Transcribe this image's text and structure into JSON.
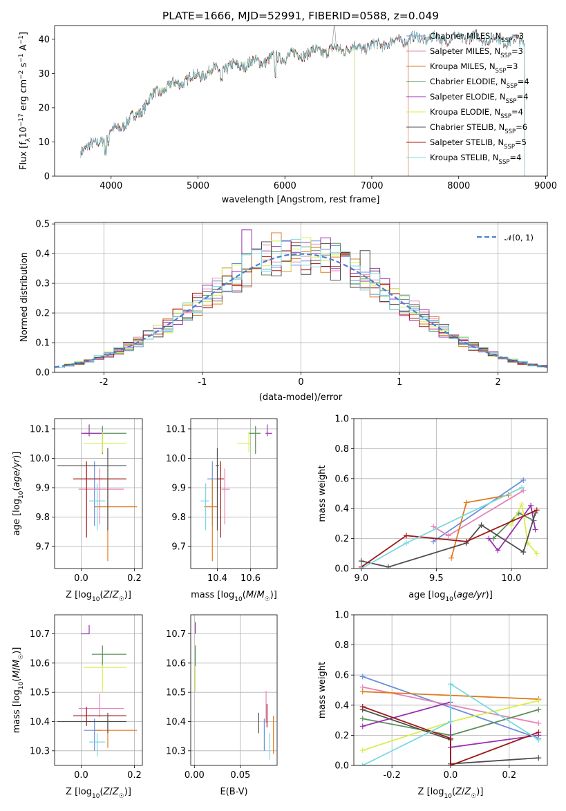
{
  "title": "PLATE=1666, MJD=52991, FIBERID=0588, z=0.049",
  "colors": {
    "Chabrier MILES": "#6a8fdb",
    "Salpeter MILES": "#e882b8",
    "Kroupa MILES": "#e07a1f",
    "Chabrier ELODIE": "#5a8f5a",
    "Salpeter ELODIE": "#9b30b0",
    "Kroupa ELODIE": "#d7ef4a",
    "Chabrier STELIB": "#4d4d4d",
    "Salpeter STELIB": "#a01818",
    "Kroupa STELIB": "#7ad8e0"
  },
  "chart_data": [
    {
      "id": "spectrum",
      "type": "line",
      "xlabel": "wavelength [Angstrom, rest frame]",
      "ylabel": "Flux [f_λ10^-17 erg cm^-2 s^-1 A^-1]",
      "xlim": [
        3350,
        9020
      ],
      "ylim": [
        0,
        44
      ],
      "xticks": [
        4000,
        5000,
        6000,
        7000,
        8000,
        9000
      ],
      "yticks": [
        0,
        10,
        20,
        30,
        40
      ],
      "legend_position": "upper right",
      "legend": [
        "Chabrier MILES, N_SSP=3",
        "Salpeter MILES, N_SSP=3",
        "Kroupa MILES, N_SSP=3",
        "Chabrier ELODIE, N_SSP=4",
        "Salpeter ELODIE, N_SSP=4",
        "Kroupa ELODIE, N_SSP=4",
        "Chabrier STELIB, N_SSP=6",
        "Salpeter STELIB, N_SSP=5",
        "Kroupa STELIB, N_SSP=4"
      ],
      "legend_parts": [
        [
          "Chabrier MILES, N",
          "SSP",
          "=3"
        ],
        [
          "Salpeter MILES, N",
          "SSP",
          "=3"
        ],
        [
          "Kroupa MILES, N",
          "SSP",
          "=3"
        ],
        [
          "Chabrier ELODIE, N",
          "SSP",
          "=4"
        ],
        [
          "Salpeter ELODIE, N",
          "SSP",
          "=4"
        ],
        [
          "Kroupa ELODIE, N",
          "SSP",
          "=4"
        ],
        [
          "Chabrier STELIB, N",
          "SSP",
          "=6"
        ],
        [
          "Salpeter STELIB, N",
          "SSP",
          "=5"
        ],
        [
          "Kroupa STELIB, N",
          "SSP",
          "=4"
        ]
      ],
      "continuum": [
        [
          3650,
          8
        ],
        [
          3800,
          9
        ],
        [
          3900,
          11
        ],
        [
          4000,
          13
        ],
        [
          4100,
          14.5
        ],
        [
          4200,
          16
        ],
        [
          4300,
          18
        ],
        [
          4400,
          21
        ],
        [
          4500,
          24
        ],
        [
          4600,
          25.5
        ],
        [
          4800,
          27.5
        ],
        [
          5000,
          29.5
        ],
        [
          5200,
          31
        ],
        [
          5400,
          32
        ],
        [
          5600,
          33
        ],
        [
          5800,
          34
        ],
        [
          6000,
          35
        ],
        [
          6200,
          35.8
        ],
        [
          6400,
          36.5
        ],
        [
          6600,
          37
        ],
        [
          6800,
          37.5
        ],
        [
          7000,
          38
        ],
        [
          7200,
          39
        ],
        [
          7400,
          40
        ],
        [
          7600,
          40.5
        ],
        [
          7800,
          40
        ],
        [
          8000,
          40.5
        ],
        [
          8200,
          40.5
        ],
        [
          8400,
          40
        ],
        [
          8600,
          39.5
        ],
        [
          8800,
          39
        ]
      ],
      "models_span": [
        {
          "model": "Chabrier MILES",
          "x0": 3650,
          "x1": 7420
        },
        {
          "model": "Salpeter MILES",
          "x0": 3650,
          "x1": 7420
        },
        {
          "model": "Kroupa MILES",
          "x0": 3650,
          "x1": 7420
        },
        {
          "model": "Chabrier ELODIE",
          "x0": 3900,
          "x1": 6800
        },
        {
          "model": "Salpeter ELODIE",
          "x0": 3900,
          "x1": 6800
        },
        {
          "model": "Kroupa ELODIE",
          "x0": 3900,
          "x1": 6800
        },
        {
          "model": "Chabrier STELIB",
          "x0": 3650,
          "x1": 8760
        },
        {
          "model": "Salpeter STELIB",
          "x0": 3650,
          "x1": 8760
        },
        {
          "model": "Kroupa STELIB",
          "x0": 3650,
          "x1": 8760
        }
      ]
    },
    {
      "id": "residuals",
      "type": "line",
      "xlabel": "(data-model)/error",
      "ylabel": "Normed distribution",
      "xlim": [
        -2.5,
        2.5
      ],
      "ylim": [
        0,
        0.505
      ],
      "xticks": [
        -2,
        -1,
        0,
        1,
        2
      ],
      "yticks": [
        0.0,
        0.1,
        0.2,
        0.3,
        0.4,
        0.5
      ],
      "legend": [
        "𝒩(0, 1)"
      ],
      "legend_position": "upper right",
      "grid": true,
      "bin_width": 0.1,
      "gaussian": {
        "mean": 0,
        "sigma": 1
      }
    },
    {
      "id": "age_vs_Z",
      "type": "scatter",
      "xlabel": "Z [log10(Z/Z☉)]",
      "ylabel": "age [log10(age/yr)]",
      "xlim": [
        -0.1,
        0.23
      ],
      "ylim": [
        9.625,
        10.135
      ],
      "xticks": [
        0.0,
        0.2
      ],
      "yticks": [
        9.7,
        9.8,
        9.9,
        10.0,
        10.1
      ],
      "points": [
        {
          "model": "Chabrier MILES",
          "x": 0.05,
          "y": 9.93,
          "xerr": [
            0.04,
            0.03
          ],
          "yerr": [
            0.16,
            0.06
          ]
        },
        {
          "model": "Salpeter MILES",
          "x": 0.07,
          "y": 9.895,
          "xerr": [
            0.08,
            0.09
          ],
          "yerr": [
            0.12,
            0.07
          ]
        },
        {
          "model": "Kroupa MILES",
          "x": 0.1,
          "y": 9.835,
          "xerr": [
            0.05,
            0.11
          ],
          "yerr": [
            0.185,
            0.095
          ]
        },
        {
          "model": "Chabrier ELODIE",
          "x": 0.08,
          "y": 10.085,
          "xerr": [
            0.07,
            0.09
          ],
          "yerr": [
            0.07,
            0.025
          ]
        },
        {
          "model": "Salpeter ELODIE",
          "x": 0.03,
          "y": 10.085,
          "xerr": [
            0.03,
            0.05
          ],
          "yerr": [
            0.01,
            0.03
          ]
        },
        {
          "model": "Kroupa ELODIE",
          "x": 0.08,
          "y": 10.05,
          "xerr": [
            0.07,
            0.09
          ],
          "yerr": [
            0.03,
            0.04
          ]
        },
        {
          "model": "Chabrier STELIB",
          "x": 0.1,
          "y": 9.975,
          "xerr": [
            0.19,
            0.07
          ],
          "yerr": [
            0.22,
            0.06
          ]
        },
        {
          "model": "Salpeter STELIB",
          "x": 0.02,
          "y": 9.93,
          "xerr": [
            0.05,
            0.15
          ],
          "yerr": [
            0.2,
            0.06
          ]
        },
        {
          "model": "Kroupa STELIB",
          "x": 0.06,
          "y": 9.855,
          "xerr": [
            0.03,
            0.03
          ],
          "yerr": [
            0.1,
            0.06
          ]
        }
      ]
    },
    {
      "id": "age_vs_mass",
      "type": "scatter",
      "xlabel": "mass [log10(M/M☉)]",
      "ylabel": "",
      "xlim": [
        10.24,
        10.76
      ],
      "ylim": [
        9.625,
        10.135
      ],
      "xticks": [
        10.4,
        10.6
      ],
      "yticks": [
        9.7,
        9.8,
        9.9,
        10.0,
        10.1
      ],
      "points": [
        {
          "model": "Chabrier MILES",
          "x": 10.37,
          "y": 9.93,
          "xerr": [
            0.03,
            0.04
          ],
          "yerr": [
            0.16,
            0.06
          ]
        },
        {
          "model": "Salpeter MILES",
          "x": 10.445,
          "y": 9.895,
          "xerr": [
            0.02,
            0.03
          ],
          "yerr": [
            0.12,
            0.07
          ]
        },
        {
          "model": "Kroupa MILES",
          "x": 10.37,
          "y": 9.835,
          "xerr": [
            0.05,
            0.03
          ],
          "yerr": [
            0.185,
            0.095
          ]
        },
        {
          "model": "Chabrier ELODIE",
          "x": 10.63,
          "y": 10.085,
          "xerr": [
            0.04,
            0.03
          ],
          "yerr": [
            0.07,
            0.025
          ]
        },
        {
          "model": "Salpeter ELODIE",
          "x": 10.7,
          "y": 10.085,
          "xerr": [
            0.01,
            0.03
          ],
          "yerr": [
            0.01,
            0.03
          ]
        },
        {
          "model": "Kroupa ELODIE",
          "x": 10.59,
          "y": 10.05,
          "xerr": [
            0.07,
            0.01
          ],
          "yerr": [
            0.03,
            0.04
          ]
        },
        {
          "model": "Chabrier STELIB",
          "x": 10.4,
          "y": 9.975,
          "xerr": [
            0.01,
            0.01
          ],
          "yerr": [
            0.22,
            0.06
          ]
        },
        {
          "model": "Salpeter STELIB",
          "x": 10.42,
          "y": 9.93,
          "xerr": [
            0.02,
            0.02
          ],
          "yerr": [
            0.2,
            0.06
          ]
        },
        {
          "model": "Kroupa STELIB",
          "x": 10.33,
          "y": 9.855,
          "xerr": [
            0.03,
            0.02
          ],
          "yerr": [
            0.1,
            0.06
          ]
        }
      ]
    },
    {
      "id": "weight_vs_age",
      "type": "line",
      "xlabel": "age [log10(age/yr)]",
      "ylabel": "mass weight",
      "xlim": [
        8.95,
        10.24
      ],
      "ylim": [
        0,
        1.0
      ],
      "xticks": [
        9.0,
        9.5,
        10.0
      ],
      "yticks": [
        0.0,
        0.2,
        0.4,
        0.6,
        0.8,
        1.0
      ],
      "series": [
        {
          "model": "Chabrier MILES",
          "x": [
            9.48,
            10.08
          ],
          "y": [
            0.18,
            0.59
          ]
        },
        {
          "model": "Salpeter MILES",
          "x": [
            9.48,
            9.58,
            10.08
          ],
          "y": [
            0.28,
            0.22,
            0.52
          ]
        },
        {
          "model": "Kroupa MILES",
          "x": [
            9.6,
            9.7,
            9.98
          ],
          "y": [
            0.07,
            0.44,
            0.49
          ]
        },
        {
          "model": "Chabrier ELODIE",
          "x": [
            9.88,
            10.05,
            10.15
          ],
          "y": [
            0.2,
            0.37,
            0.32
          ]
        },
        {
          "model": "Salpeter ELODIE",
          "x": [
            9.85,
            9.91,
            10.13,
            10.16
          ],
          "y": [
            0.2,
            0.12,
            0.42,
            0.26
          ]
        },
        {
          "model": "Kroupa ELODIE",
          "x": [
            10.0,
            10.07,
            10.11,
            10.17
          ],
          "y": [
            0.29,
            0.43,
            0.17,
            0.1
          ]
        },
        {
          "model": "Chabrier STELIB",
          "x": [
            9.0,
            9.18,
            9.7,
            9.8,
            10.08,
            10.16
          ],
          "y": [
            0.05,
            0.01,
            0.17,
            0.29,
            0.11,
            0.37
          ]
        },
        {
          "model": "Salpeter STELIB",
          "x": [
            9.0,
            9.3,
            9.7,
            10.17
          ],
          "y": [
            0.01,
            0.22,
            0.18,
            0.39
          ]
        },
        {
          "model": "Kroupa STELIB",
          "x": [
            9.0,
            9.3,
            10.07
          ],
          "y": [
            0.0,
            0.17,
            0.54
          ]
        }
      ]
    },
    {
      "id": "mass_vs_Z",
      "type": "scatter",
      "xlabel": "Z [log10(Z/Z☉)]",
      "ylabel": "mass [log10(M/M☉)]",
      "xlim": [
        -0.1,
        0.23
      ],
      "ylim": [
        10.25,
        10.765
      ],
      "xticks": [
        0.0,
        0.2
      ],
      "yticks": [
        10.3,
        10.4,
        10.5,
        10.6,
        10.7
      ],
      "points": [
        {
          "model": "Chabrier MILES",
          "x": 0.05,
          "y": 10.37,
          "xerr": [
            0.04,
            0.03
          ],
          "yerr": [
            0.07,
            0.04
          ]
        },
        {
          "model": "Salpeter MILES",
          "x": 0.07,
          "y": 10.445,
          "xerr": [
            0.08,
            0.09
          ],
          "yerr": [
            0.03,
            0.05
          ]
        },
        {
          "model": "Kroupa MILES",
          "x": 0.1,
          "y": 10.37,
          "xerr": [
            0.05,
            0.11
          ],
          "yerr": [
            0.06,
            0.03
          ]
        },
        {
          "model": "Chabrier ELODIE",
          "x": 0.08,
          "y": 10.63,
          "xerr": [
            0.04,
            0.09
          ],
          "yerr": [
            0.04,
            0.03
          ]
        },
        {
          "model": "Salpeter ELODIE",
          "x": 0.03,
          "y": 10.7,
          "xerr": [
            0.03,
            0.0
          ],
          "yerr": [
            0.0,
            0.03
          ]
        },
        {
          "model": "Kroupa ELODIE",
          "x": 0.08,
          "y": 10.585,
          "xerr": [
            0.07,
            0.09
          ],
          "yerr": [
            0.085,
            0.01
          ]
        },
        {
          "model": "Chabrier STELIB",
          "x": 0.1,
          "y": 10.4,
          "xerr": [
            0.19,
            0.07
          ],
          "yerr": [
            0.04,
            0.03
          ]
        },
        {
          "model": "Salpeter STELIB",
          "x": 0.02,
          "y": 10.42,
          "xerr": [
            0.05,
            0.15
          ],
          "yerr": [
            0.035,
            0.03
          ]
        },
        {
          "model": "Kroupa STELIB",
          "x": 0.06,
          "y": 10.33,
          "xerr": [
            0.03,
            0.03
          ],
          "yerr": [
            0.05,
            0.03
          ]
        }
      ]
    },
    {
      "id": "mass_vs_EBV",
      "type": "scatter",
      "xlabel": "E(B-V)",
      "ylabel": "",
      "xlim": [
        -0.004,
        0.09
      ],
      "ylim": [
        10.25,
        10.765
      ],
      "xticks": [
        0.0,
        0.05
      ],
      "yticks": [
        10.3,
        10.4,
        10.5,
        10.6,
        10.7
      ],
      "points": [
        {
          "model": "Chabrier MILES",
          "x": 0.076,
          "y": 10.37,
          "yerr": [
            0.07,
            0.04
          ]
        },
        {
          "model": "Salpeter MILES",
          "x": 0.078,
          "y": 10.445,
          "yerr": [
            0.05,
            0.06
          ]
        },
        {
          "model": "Kroupa MILES",
          "x": 0.086,
          "y": 10.37,
          "yerr": [
            0.08,
            0.05
          ]
        },
        {
          "model": "Chabrier ELODIE",
          "x": 0.001,
          "y": 10.63,
          "yerr": [
            0.04,
            0.03
          ]
        },
        {
          "model": "Salpeter ELODIE",
          "x": 0.001,
          "y": 10.72,
          "yerr": [
            0.02,
            0.02
          ]
        },
        {
          "model": "Kroupa ELODIE",
          "x": 0.001,
          "y": 10.54,
          "yerr": [
            0.04,
            0.05
          ]
        },
        {
          "model": "Chabrier STELIB",
          "x": 0.07,
          "y": 10.39,
          "yerr": [
            0.03,
            0.04
          ]
        },
        {
          "model": "Salpeter STELIB",
          "x": 0.079,
          "y": 10.42,
          "yerr": [
            0.04,
            0.04
          ]
        },
        {
          "model": "Kroupa STELIB",
          "x": 0.082,
          "y": 10.31,
          "yerr": [
            0.04,
            0.05
          ]
        }
      ]
    },
    {
      "id": "weight_vs_Z",
      "type": "line",
      "xlabel": "Z [log10(Z/Z☉)]",
      "ylabel": "mass weight",
      "xlim": [
        -0.33,
        0.33
      ],
      "ylim": [
        0,
        1.0
      ],
      "xticks": [
        -0.2,
        0.0,
        0.2
      ],
      "yticks": [
        0.0,
        0.2,
        0.4,
        0.6,
        0.8,
        1.0
      ],
      "series": [
        {
          "model": "Chabrier MILES",
          "x": [
            -0.3,
            0.3
          ],
          "y": [
            0.59,
            0.18
          ]
        },
        {
          "model": "Salpeter MILES",
          "x": [
            -0.3,
            0.3
          ],
          "y": [
            0.52,
            0.28
          ]
        },
        {
          "model": "Kroupa MILES",
          "x": [
            -0.3,
            0.3
          ],
          "y": [
            0.49,
            0.44
          ]
        },
        {
          "model": "Chabrier ELODIE",
          "x": [
            -0.3,
            0.0,
            0.3
          ],
          "y": [
            0.31,
            0.2,
            0.37
          ]
        },
        {
          "model": "Salpeter ELODIE",
          "x": [
            -0.3,
            0.0,
            0.0,
            0.3
          ],
          "y": [
            0.26,
            0.42,
            0.12,
            0.2
          ]
        },
        {
          "model": "Kroupa ELODIE",
          "x": [
            -0.3,
            0.0,
            0.3
          ],
          "y": [
            0.1,
            0.29,
            0.43
          ]
        },
        {
          "model": "Chabrier STELIB",
          "x": [
            -0.3,
            0.0,
            0.0,
            0.3
          ],
          "y": [
            0.37,
            0.17,
            0.01,
            0.05
          ]
        },
        {
          "model": "Salpeter STELIB",
          "x": [
            -0.3,
            0.0,
            0.0,
            0.3
          ],
          "y": [
            0.39,
            0.18,
            0.0,
            0.22
          ]
        },
        {
          "model": "Kroupa STELIB",
          "x": [
            -0.3,
            0.0,
            0.0,
            0.3
          ],
          "y": [
            0.0,
            0.29,
            0.54,
            0.17
          ]
        }
      ]
    }
  ]
}
